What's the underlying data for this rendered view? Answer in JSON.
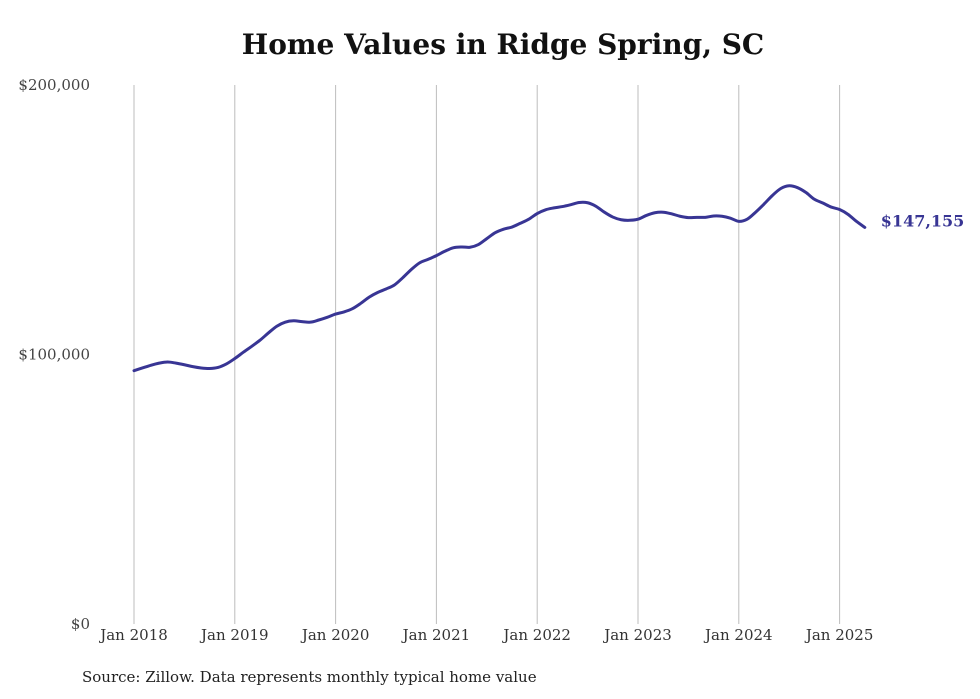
{
  "chart_data": {
    "type": "line",
    "title": "Home Values in Ridge Spring, SC",
    "source": "Source: Zillow. Data represents monthly typical home value",
    "y_ticks": [
      "$0",
      "$100,000",
      "$200,000"
    ],
    "y_tick_values": [
      0,
      100000,
      200000
    ],
    "ylim": [
      0,
      200000
    ],
    "x_ticks": [
      "Jan 2018",
      "Jan 2019",
      "Jan 2020",
      "Jan 2021",
      "Jan 2022",
      "Jan 2023",
      "Jan 2024",
      "Jan 2025"
    ],
    "x_tick_values": [
      "2018-01",
      "2019-01",
      "2020-01",
      "2021-01",
      "2022-01",
      "2023-01",
      "2024-01",
      "2025-01"
    ],
    "grid": "vertical",
    "line_color": "#383594",
    "end_label": "$147,155",
    "series": [
      {
        "x": [
          "2018-01",
          "2018-02",
          "2018-03",
          "2018-04",
          "2018-05",
          "2018-06",
          "2018-07",
          "2018-08",
          "2018-09",
          "2018-10",
          "2018-11",
          "2018-12",
          "2019-01",
          "2019-02",
          "2019-03",
          "2019-04",
          "2019-05",
          "2019-06",
          "2019-07",
          "2019-08",
          "2019-09",
          "2019-10",
          "2019-11",
          "2019-12",
          "2020-01",
          "2020-02",
          "2020-03",
          "2020-04",
          "2020-05",
          "2020-06",
          "2020-07",
          "2020-08",
          "2020-09",
          "2020-10",
          "2020-11",
          "2020-12",
          "2021-01",
          "2021-02",
          "2021-03",
          "2021-04",
          "2021-05",
          "2021-06",
          "2021-07",
          "2021-08",
          "2021-09",
          "2021-10",
          "2021-11",
          "2021-12",
          "2022-01",
          "2022-02",
          "2022-03",
          "2022-04",
          "2022-05",
          "2022-06",
          "2022-07",
          "2022-08",
          "2022-09",
          "2022-10",
          "2022-11",
          "2022-12",
          "2023-01",
          "2023-02",
          "2023-03",
          "2023-04",
          "2023-05",
          "2023-06",
          "2023-07",
          "2023-08",
          "2023-09",
          "2023-10",
          "2023-11",
          "2023-12",
          "2024-01",
          "2024-02",
          "2024-03",
          "2024-04",
          "2024-05",
          "2024-06",
          "2024-07",
          "2024-08",
          "2024-09",
          "2024-10",
          "2024-11",
          "2024-12",
          "2025-01",
          "2025-02",
          "2025-03",
          "2025-04"
        ],
        "values": [
          94000,
          95000,
          96000,
          96800,
          97200,
          96800,
          96200,
          95500,
          95000,
          94800,
          95200,
          96500,
          98500,
          100800,
          103000,
          105300,
          108000,
          110500,
          112000,
          112500,
          112200,
          112000,
          112800,
          113800,
          115000,
          115800,
          117000,
          119000,
          121300,
          123000,
          124300,
          125800,
          128500,
          131500,
          134000,
          135300,
          136700,
          138300,
          139600,
          139900,
          139800,
          140800,
          143000,
          145200,
          146500,
          147300,
          148700,
          150200,
          152300,
          153700,
          154400,
          154900,
          155600,
          156400,
          156300,
          155000,
          152800,
          151000,
          150000,
          149800,
          150200,
          151600,
          152600,
          152800,
          152200,
          151300,
          150800,
          150900,
          150900,
          151400,
          151300,
          150600,
          149400,
          150200,
          152800,
          155800,
          159000,
          161600,
          162600,
          161900,
          160100,
          157600,
          156200,
          154700,
          153800,
          152000,
          149400,
          147155
        ]
      }
    ]
  }
}
